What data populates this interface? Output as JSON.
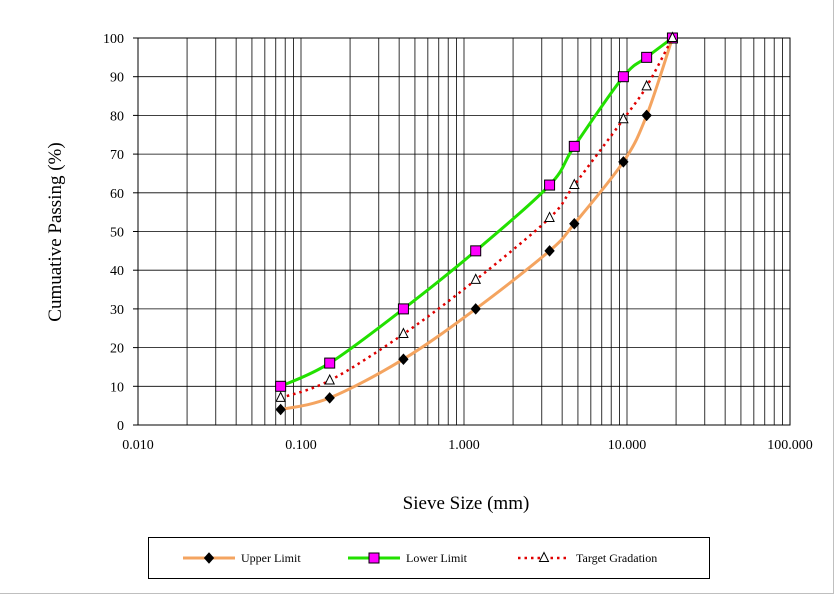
{
  "chart_data": {
    "type": "line",
    "title": "",
    "xlabel": "Sieve Size (mm)",
    "ylabel": "Cumuative Passing (%)",
    "x_scale": "log",
    "xlim": [
      0.01,
      100
    ],
    "ylim": [
      0,
      100
    ],
    "x_ticks": [
      "0.010",
      "0.100",
      "1.000",
      "10.000",
      "100.000"
    ],
    "y_ticks": [
      "0",
      "10",
      "20",
      "30",
      "40",
      "50",
      "60",
      "70",
      "80",
      "90",
      "100"
    ],
    "grid": true,
    "legend_position": "bottom",
    "series": [
      {
        "name": "Upper Limit",
        "color": "#f4a460",
        "marker": "diamond",
        "marker_color": "#000000",
        "line_style": "solid",
        "x": [
          0.075,
          0.15,
          0.425,
          1.18,
          3.35,
          4.75,
          9.5,
          13.2,
          19.0
        ],
        "y": [
          4,
          7,
          17,
          30,
          45,
          52,
          68,
          80,
          100
        ]
      },
      {
        "name": "Lower Limit",
        "color": "#22e000",
        "marker": "square",
        "marker_color": "#ff00ff",
        "line_style": "solid",
        "x": [
          0.075,
          0.15,
          0.425,
          1.18,
          3.35,
          4.75,
          9.5,
          13.2,
          19.0
        ],
        "y": [
          10,
          16,
          30,
          45,
          62,
          72,
          90,
          95,
          100
        ]
      },
      {
        "name": "Target Gradation",
        "color": "#e00000",
        "marker": "triangle",
        "marker_color": "#000000",
        "line_style": "dotted",
        "x": [
          0.075,
          0.15,
          0.425,
          1.18,
          3.35,
          4.75,
          9.5,
          13.2,
          19.0
        ],
        "y": [
          7,
          11.5,
          23.5,
          37.5,
          53.5,
          62,
          79,
          87.5,
          100
        ]
      }
    ]
  }
}
